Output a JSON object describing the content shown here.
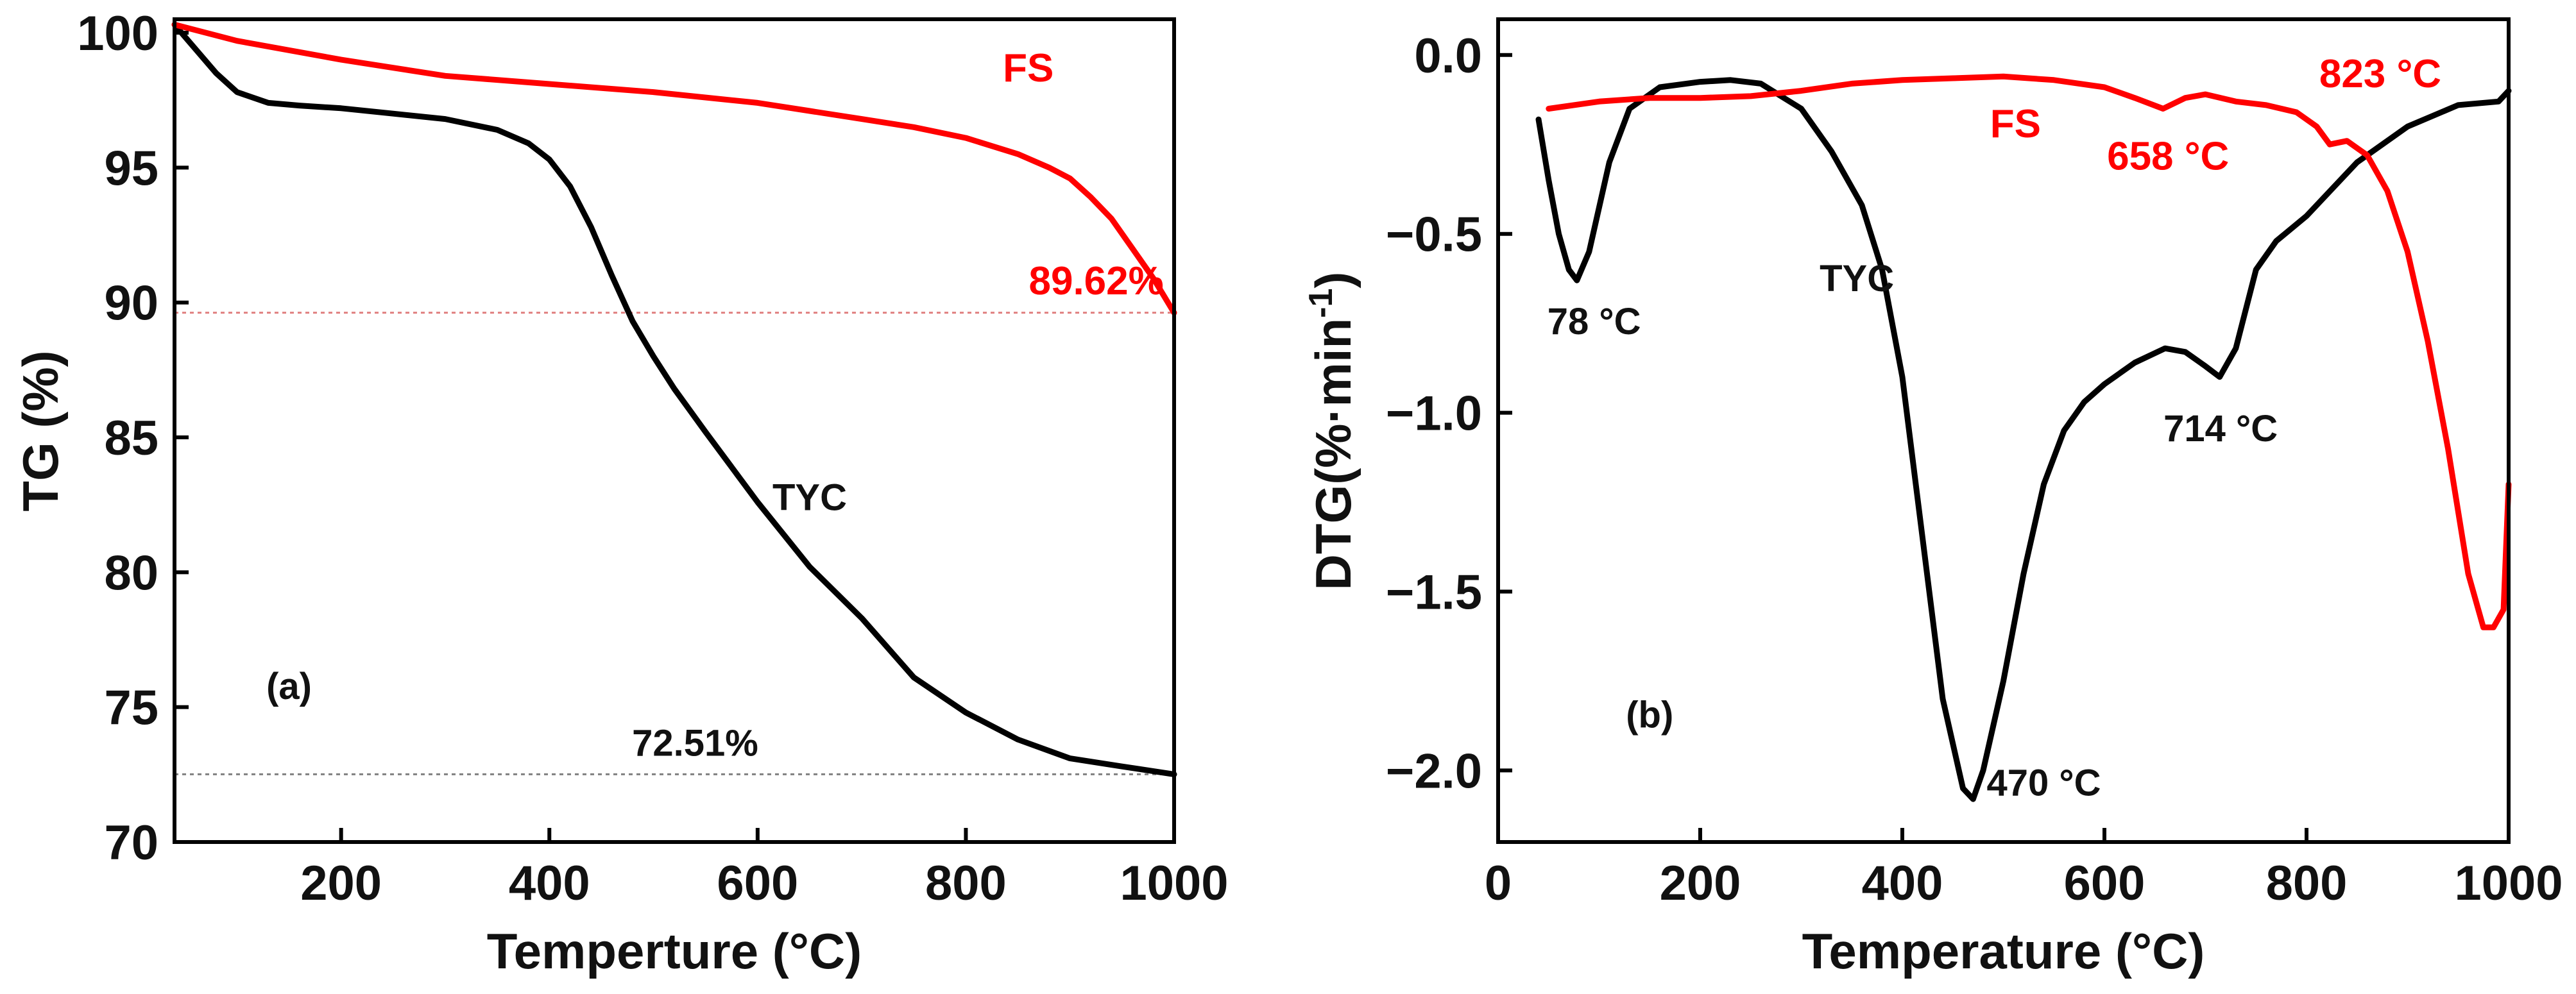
{
  "chart_data": [
    {
      "type": "line",
      "panel": "(a)",
      "xlabel": "Temperture (°C)",
      "ylabel": "TG (%)",
      "xlim": [
        40,
        1000
      ],
      "ylim": [
        70,
        100.5
      ],
      "xticks": [
        200,
        400,
        600,
        800,
        1000
      ],
      "yticks": [
        70,
        75,
        80,
        85,
        90,
        95,
        100
      ],
      "series": [
        {
          "name": "TYC",
          "color": "#000000",
          "x": [
            40,
            60,
            80,
            100,
            130,
            160,
            200,
            250,
            300,
            350,
            380,
            400,
            420,
            440,
            460,
            480,
            500,
            520,
            550,
            600,
            650,
            700,
            750,
            800,
            850,
            900,
            950,
            1000
          ],
          "y": [
            100.3,
            99.4,
            98.5,
            97.8,
            97.4,
            97.3,
            97.2,
            97.0,
            96.8,
            96.4,
            95.9,
            95.3,
            94.3,
            92.8,
            91.0,
            89.3,
            88.0,
            86.8,
            85.2,
            82.6,
            80.2,
            78.3,
            76.1,
            74.8,
            73.8,
            73.1,
            72.8,
            72.51
          ]
        },
        {
          "name": "FS",
          "color": "#ff0000",
          "x": [
            40,
            100,
            200,
            300,
            400,
            500,
            600,
            650,
            700,
            750,
            800,
            850,
            880,
            900,
            920,
            940,
            960,
            980,
            1000
          ],
          "y": [
            100.3,
            99.7,
            99.0,
            98.4,
            98.1,
            97.8,
            97.4,
            97.1,
            96.8,
            96.5,
            96.1,
            95.5,
            95.0,
            94.6,
            93.9,
            93.1,
            92.0,
            90.9,
            89.62
          ]
        }
      ],
      "hlines": [
        {
          "y": 89.62,
          "color": "#e08080",
          "xstart": 40
        },
        {
          "y": 72.51,
          "color": "#808080",
          "xstart": 40
        }
      ],
      "annotations": [
        {
          "text": "FS",
          "x": 860,
          "y": 98.2,
          "color": "#ff0000",
          "anchor": "middle"
        },
        {
          "text": "89.62%",
          "x": 990,
          "y": 90.3,
          "color": "#ff0000",
          "anchor": "end"
        },
        {
          "text": "TYC",
          "x": 650,
          "y": 82.3,
          "color": "#000000",
          "anchor": "middle"
        },
        {
          "text": "72.51%",
          "x": 540,
          "y": 73.2,
          "color": "#000000",
          "anchor": "middle"
        },
        {
          "text": "(a)",
          "x": 150,
          "y": 75.3,
          "color": "#000000",
          "anchor": "middle"
        }
      ]
    },
    {
      "type": "line",
      "panel": "(b)",
      "xlabel": "Temperature (°C)",
      "ylabel": "DTG(%·min",
      "ylabel_sup": "-1",
      "ylabel_end": ")",
      "xlim": [
        0,
        1000
      ],
      "ylim": [
        -2.2,
        0.1
      ],
      "xticks": [
        0,
        200,
        400,
        600,
        800,
        1000
      ],
      "yticks": [
        0.0,
        -0.5,
        -1.0,
        -1.5,
        -2.0
      ],
      "ytick_labels": [
        "0.0",
        "−0.5",
        "−1.0",
        "−1.5",
        "−2.0"
      ],
      "series": [
        {
          "name": "TYC",
          "color": "#000000",
          "x": [
            40,
            50,
            60,
            70,
            78,
            90,
            110,
            130,
            160,
            200,
            230,
            260,
            300,
            330,
            360,
            380,
            400,
            420,
            440,
            460,
            470,
            480,
            500,
            520,
            540,
            560,
            580,
            600,
            630,
            660,
            680,
            700,
            714,
            730,
            750,
            770,
            800,
            850,
            900,
            950,
            990,
            1000
          ],
          "y": [
            -0.18,
            -0.35,
            -0.5,
            -0.6,
            -0.63,
            -0.55,
            -0.3,
            -0.15,
            -0.09,
            -0.075,
            -0.07,
            -0.08,
            -0.15,
            -0.27,
            -0.42,
            -0.6,
            -0.9,
            -1.35,
            -1.8,
            -2.05,
            -2.08,
            -2.0,
            -1.75,
            -1.45,
            -1.2,
            -1.05,
            -0.97,
            -0.92,
            -0.86,
            -0.82,
            -0.83,
            -0.87,
            -0.9,
            -0.82,
            -0.6,
            -0.52,
            -0.45,
            -0.3,
            -0.2,
            -0.14,
            -0.13,
            -0.1
          ]
        },
        {
          "name": "FS",
          "color": "#ff0000",
          "x": [
            50,
            100,
            150,
            200,
            250,
            300,
            350,
            400,
            450,
            500,
            550,
            600,
            630,
            658,
            680,
            700,
            730,
            760,
            790,
            810,
            823,
            840,
            860,
            880,
            900,
            920,
            940,
            960,
            975,
            985,
            995,
            1000
          ],
          "y": [
            -0.15,
            -0.13,
            -0.12,
            -0.12,
            -0.115,
            -0.1,
            -0.08,
            -0.07,
            -0.065,
            -0.06,
            -0.07,
            -0.09,
            -0.12,
            -0.15,
            -0.12,
            -0.11,
            -0.13,
            -0.14,
            -0.16,
            -0.2,
            -0.25,
            -0.24,
            -0.28,
            -0.38,
            -0.55,
            -0.8,
            -1.1,
            -1.45,
            -1.6,
            -1.6,
            -1.55,
            -1.2
          ]
        }
      ],
      "annotations": [
        {
          "text": "78 °C",
          "x": 95,
          "y": -0.78,
          "color": "#000000",
          "anchor": "middle"
        },
        {
          "text": "TYC",
          "x": 355,
          "y": -0.66,
          "color": "#000000",
          "anchor": "middle"
        },
        {
          "text": "FS",
          "x": 512,
          "y": -0.23,
          "color": "#ff0000",
          "anchor": "middle"
        },
        {
          "text": "470 °C",
          "x": 540,
          "y": -2.07,
          "color": "#000000",
          "anchor": "middle"
        },
        {
          "text": "658 °C",
          "x": 663,
          "y": -0.32,
          "color": "#ff0000",
          "anchor": "middle"
        },
        {
          "text": "714 °C",
          "x": 715,
          "y": -1.08,
          "color": "#000000",
          "anchor": "middle"
        },
        {
          "text": "823 °C",
          "x": 873,
          "y": -0.09,
          "color": "#ff0000",
          "anchor": "middle"
        },
        {
          "text": "(b)",
          "x": 150,
          "y": -1.88,
          "color": "#000000",
          "anchor": "middle"
        }
      ]
    }
  ]
}
